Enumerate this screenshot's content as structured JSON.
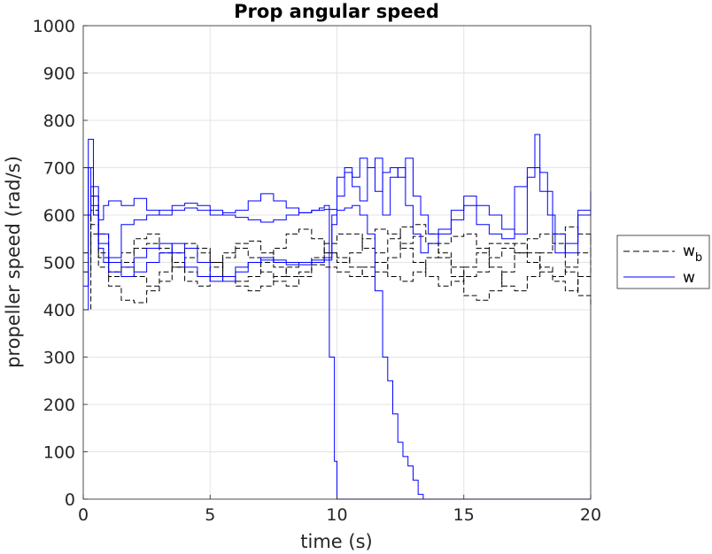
{
  "chart_data": {
    "type": "line",
    "title": "Prop angular speed",
    "xlabel": "time (s)",
    "ylabel": "propeller speed (rad/s)",
    "xlim": [
      0,
      20
    ],
    "ylim": [
      0,
      1000
    ],
    "xticks": [
      0,
      5,
      10,
      15,
      20
    ],
    "yticks": [
      0,
      100,
      200,
      300,
      400,
      500,
      600,
      700,
      800,
      900,
      1000
    ],
    "xtick_labels": [
      "0",
      "5",
      "10",
      "15",
      "20"
    ],
    "ytick_labels": [
      "0",
      "100",
      "200",
      "300",
      "400",
      "500",
      "600",
      "700",
      "800",
      "900",
      "1000"
    ],
    "grid": true,
    "legend_position": "outside-right",
    "legend": [
      {
        "name": "w",
        "subscript": "b",
        "style": "dashed",
        "color": "#000000"
      },
      {
        "name": "w",
        "subscript": "",
        "style": "solid",
        "color": "#0000ff"
      }
    ],
    "series": [
      {
        "group": "w_b",
        "style": "dashed",
        "color": "#000000",
        "x": [
          0,
          0.3,
          0.6,
          1.0,
          1.5,
          2.0,
          2.5,
          3.0,
          3.5,
          4.0,
          4.5,
          5.0,
          5.5,
          6.0,
          6.5,
          7.0,
          7.5,
          8.0,
          8.5,
          9.0,
          9.5,
          10.0,
          10.5,
          11.0,
          11.5,
          12.0,
          12.5,
          13.0,
          13.5,
          14.0,
          14.5,
          15.0,
          15.5,
          16.0,
          16.5,
          17.0,
          17.5,
          18.0,
          18.5,
          19.0,
          19.5,
          20.0
        ],
        "y": [
          400,
          610,
          520,
          450,
          420,
          415,
          440,
          480,
          520,
          540,
          530,
          500,
          470,
          450,
          440,
          450,
          470,
          490,
          500,
          495,
          490,
          480,
          470,
          490,
          520,
          550,
          575,
          580,
          560,
          520,
          470,
          430,
          420,
          440,
          480,
          520,
          550,
          560,
          540,
          480,
          430,
          410
        ]
      },
      {
        "group": "w_b",
        "style": "dashed",
        "color": "#000000",
        "x": [
          0,
          0.3,
          0.6,
          1.0,
          1.5,
          2.0,
          2.5,
          3.0,
          3.5,
          4.0,
          4.5,
          5.0,
          5.5,
          6.0,
          6.5,
          7.0,
          7.5,
          8.0,
          8.5,
          9.0,
          9.5,
          10.0,
          10.5,
          11.0,
          11.5,
          12.0,
          12.5,
          13.0,
          13.5,
          14.0,
          14.5,
          15.0,
          15.5,
          16.0,
          16.5,
          17.0,
          17.5,
          18.0,
          18.5,
          19.0,
          19.5,
          20.0
        ],
        "y": [
          520,
          640,
          560,
          500,
          520,
          550,
          560,
          530,
          490,
          460,
          450,
          470,
          510,
          540,
          545,
          520,
          490,
          470,
          480,
          510,
          540,
          560,
          560,
          530,
          500,
          470,
          460,
          480,
          510,
          540,
          555,
          560,
          530,
          490,
          450,
          440,
          470,
          520,
          560,
          575,
          560,
          540
        ]
      },
      {
        "group": "w_b",
        "style": "dashed",
        "color": "#000000",
        "x": [
          0,
          0.3,
          0.6,
          1.0,
          1.5,
          2.0,
          2.5,
          3.0,
          3.5,
          4.0,
          4.5,
          5.0,
          5.5,
          6.0,
          6.5,
          7.0,
          7.5,
          8.0,
          8.5,
          9.0,
          9.5,
          10.0,
          10.5,
          11.0,
          11.5,
          12.0,
          12.5,
          13.0,
          13.5,
          14.0,
          14.5,
          15.0,
          15.5,
          16.0,
          16.5,
          17.0,
          17.5,
          18.0,
          18.5,
          19.0,
          19.5,
          20.0
        ],
        "y": [
          600,
          580,
          510,
          480,
          490,
          470,
          450,
          460,
          490,
          510,
          520,
          500,
          470,
          460,
          470,
          500,
          530,
          560,
          570,
          550,
          520,
          500,
          520,
          550,
          570,
          560,
          530,
          500,
          470,
          450,
          460,
          490,
          520,
          540,
          540,
          520,
          500,
          480,
          470,
          490,
          520,
          560
        ]
      },
      {
        "group": "w_b",
        "style": "dashed",
        "color": "#000000",
        "x": [
          0,
          0.3,
          0.6,
          1.0,
          1.5,
          2.0,
          2.5,
          3.0,
          3.5,
          4.0,
          4.5,
          5.0,
          5.5,
          6.0,
          6.5,
          7.0,
          7.5,
          8.0,
          8.5,
          9.0,
          9.5,
          10.0,
          10.5,
          11.0,
          11.5,
          12.0,
          12.5,
          13.0,
          13.5,
          14.0,
          14.5,
          15.0,
          15.5,
          16.0,
          16.5,
          17.0,
          17.5,
          18.0,
          18.5,
          19.0,
          19.5,
          20.0
        ],
        "y": [
          480,
          560,
          490,
          470,
          500,
          530,
          540,
          520,
          500,
          480,
          470,
          490,
          520,
          530,
          510,
          480,
          460,
          450,
          470,
          500,
          520,
          510,
          490,
          470,
          480,
          510,
          540,
          555,
          540,
          510,
          490,
          470,
          480,
          510,
          530,
          540,
          520,
          490,
          460,
          440,
          470,
          520
        ]
      },
      {
        "group": "w",
        "style": "solid",
        "color": "#0000ff",
        "x": [
          0,
          0.2,
          0.4,
          0.6,
          0.8,
          1.0,
          1.5,
          2.0,
          2.5,
          3.0,
          3.5,
          4.0,
          4.5,
          5.0,
          5.5,
          6.0,
          6.5,
          7.0,
          7.5,
          8.0,
          8.5,
          9.0,
          9.3,
          9.5,
          9.7,
          9.9,
          10.0,
          10.3,
          10.6,
          11.0,
          11.4,
          11.8,
          12.0,
          12.4,
          12.8,
          13.2,
          13.6,
          14.0,
          14.5,
          15.0,
          15.5,
          16.0,
          16.5,
          17.0,
          17.5,
          17.8,
          18.2,
          18.6,
          19.0,
          19.5,
          20.0
        ],
        "y": [
          400,
          760,
          640,
          590,
          620,
          630,
          620,
          635,
          610,
          600,
          610,
          615,
          610,
          600,
          605,
          610,
          630,
          645,
          630,
          615,
          605,
          610,
          615,
          620,
          300,
          80,
          0,
          0,
          0,
          0,
          0,
          0,
          0,
          0,
          0,
          0,
          0,
          0,
          0,
          0,
          0,
          0,
          0,
          0,
          0,
          0,
          0,
          0,
          0,
          0,
          0
        ]
      },
      {
        "group": "w",
        "style": "solid",
        "color": "#0000ff",
        "x": [
          0,
          0.2,
          0.4,
          0.6,
          0.8,
          1.0,
          1.5,
          2.0,
          2.5,
          3.0,
          3.5,
          4.0,
          4.5,
          5.0,
          5.5,
          6.0,
          6.5,
          7.0,
          7.5,
          8.0,
          8.5,
          9.0,
          9.5,
          10.0,
          10.3,
          10.6,
          10.9,
          11.2,
          11.5,
          11.8,
          12.0,
          12.2,
          12.4,
          12.6,
          12.8,
          13.0,
          13.2,
          13.4,
          13.6,
          14.0,
          14.5,
          15.0,
          15.5,
          16.0,
          16.5,
          17.0,
          17.5,
          18.0,
          18.5,
          19.0,
          19.5,
          20.0
        ],
        "y": [
          450,
          700,
          600,
          530,
          500,
          510,
          580,
          590,
          600,
          610,
          620,
          625,
          620,
          610,
          600,
          595,
          590,
          585,
          590,
          600,
          605,
          610,
          612,
          610,
          615,
          620,
          600,
          560,
          440,
          300,
          250,
          180,
          120,
          90,
          70,
          40,
          10,
          0,
          0,
          0,
          0,
          0,
          0,
          0,
          0,
          0,
          0,
          0,
          0,
          0,
          0,
          0
        ]
      },
      {
        "group": "w",
        "style": "solid",
        "color": "#0000ff",
        "x": [
          0,
          0.3,
          0.6,
          1.0,
          1.5,
          2.0,
          2.5,
          3.0,
          3.5,
          4.0,
          4.5,
          5.0,
          5.5,
          6.0,
          6.5,
          7.0,
          7.5,
          8.0,
          8.5,
          9.0,
          9.5,
          9.8,
          10.0,
          10.3,
          10.6,
          10.9,
          11.2,
          11.5,
          11.8,
          12.1,
          12.4,
          12.7,
          13.0,
          13.3,
          13.6,
          14.0,
          14.5,
          15.0,
          15.5,
          16.0,
          16.5,
          17.0,
          17.5,
          18.0,
          18.5,
          19.0,
          19.5,
          20.0
        ],
        "y": [
          700,
          620,
          540,
          500,
          490,
          510,
          530,
          540,
          520,
          490,
          470,
          460,
          470,
          490,
          500,
          505,
          500,
          495,
          500,
          505,
          510,
          600,
          680,
          700,
          680,
          720,
          700,
          650,
          690,
          700,
          680,
          720,
          640,
          600,
          560,
          570,
          610,
          640,
          580,
          560,
          550,
          660,
          700,
          650,
          560,
          520,
          610,
          650
        ]
      },
      {
        "group": "w",
        "style": "solid",
        "color": "#0000ff",
        "x": [
          0,
          0.3,
          0.6,
          1.0,
          1.5,
          2.0,
          2.5,
          3.0,
          3.5,
          4.0,
          4.5,
          5.0,
          5.5,
          6.0,
          6.5,
          7.0,
          7.5,
          8.0,
          8.5,
          9.0,
          9.5,
          9.8,
          10.0,
          10.3,
          10.6,
          10.9,
          11.2,
          11.5,
          11.8,
          12.1,
          12.4,
          12.7,
          13.0,
          13.3,
          13.6,
          14.0,
          14.5,
          15.0,
          15.5,
          16.0,
          16.5,
          17.0,
          17.5,
          17.8,
          18.0,
          18.3,
          18.6,
          19.0,
          19.5,
          20.0
        ],
        "y": [
          600,
          660,
          560,
          480,
          470,
          480,
          500,
          520,
          540,
          530,
          500,
          470,
          460,
          480,
          500,
          510,
          505,
          500,
          495,
          500,
          505,
          580,
          640,
          690,
          660,
          630,
          700,
          720,
          600,
          680,
          700,
          620,
          560,
          520,
          540,
          560,
          590,
          620,
          620,
          600,
          570,
          560,
          680,
          770,
          690,
          600,
          520,
          540,
          600,
          640
        ]
      }
    ]
  }
}
